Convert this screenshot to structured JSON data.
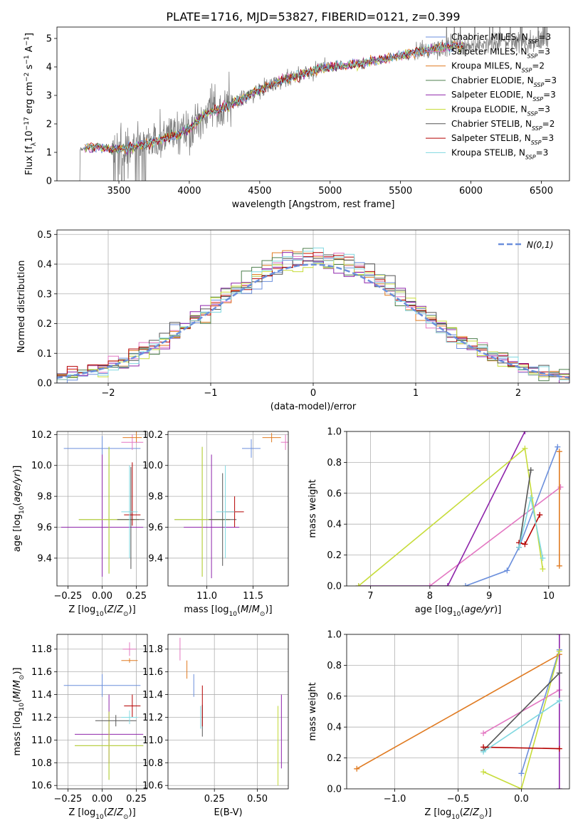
{
  "figure": {
    "title": "PLATE=1716, MJD=53827, FIBERID=0121, z=0.399",
    "panel1_ylabel": "Flux [f$_\\lambda$10$^{-17}$ erg cm$^{-2}$ s$^{-1}$ A$^{-1}$]"
  },
  "colors": {
    "chabrier_miles": "#6b8fdc",
    "salpeter_miles": "#e377c2",
    "kroupa_miles": "#e07b22",
    "chabrier_elodie": "#4d7f4d",
    "salpeter_elodie": "#8e24aa",
    "kroupa_elodie": "#c7dc3a",
    "chabrier_stelib": "#555555",
    "salpeter_stelib": "#b50000",
    "kroupa_stelib": "#80d8e0",
    "data": "#808080"
  },
  "legend_spectrum": [
    {
      "label": "Chabrier MILES, N",
      "sub": "SSP",
      "suffix": "=3",
      "color": "#6b8fdc"
    },
    {
      "label": "Salpeter MILES, N",
      "sub": "SSP",
      "suffix": "=3",
      "color": "#e377c2"
    },
    {
      "label": "Kroupa MILES, N",
      "sub": "SSP",
      "suffix": "=2",
      "color": "#e07b22"
    },
    {
      "label": "Chabrier ELODIE, N",
      "sub": "SSP",
      "suffix": "=3",
      "color": "#4d7f4d"
    },
    {
      "label": "Salpeter ELODIE, N",
      "sub": "SSP",
      "suffix": "=3",
      "color": "#8e24aa"
    },
    {
      "label": "Kroupa ELODIE, N",
      "sub": "SSP",
      "suffix": "=3",
      "color": "#c7dc3a"
    },
    {
      "label": "Chabrier STELIB, N",
      "sub": "SSP",
      "suffix": "=2",
      "color": "#555555"
    },
    {
      "label": "Salpeter STELIB, N",
      "sub": "SSP",
      "suffix": "=3",
      "color": "#b50000"
    },
    {
      "label": "Kroupa STELIB, N",
      "sub": "SSP",
      "suffix": "=3",
      "color": "#80d8e0"
    }
  ],
  "chart_data": [
    {
      "type": "line",
      "title": "PLATE=1716, MJD=53827, FIBERID=0121, z=0.399",
      "xlabel": "wavelength [Angstrom, rest frame]",
      "ylabel": "Flux [fλ10−17 erg cm−2 s−1 A−1]",
      "xlim": [
        3060,
        6700
      ],
      "ylim": [
        0,
        5.4
      ],
      "xticks": [
        3500,
        4000,
        4500,
        5000,
        5500,
        6000,
        6500
      ],
      "yticks": [
        0,
        1,
        2,
        3,
        4,
        5
      ],
      "grid": false,
      "legend": "top-right",
      "series_note": "observed spectrum (gray) with 9 overlapping model fits",
      "continuum": {
        "x": [
          3200,
          3300,
          3500,
          3700,
          3900,
          4000,
          4100,
          4300,
          4500,
          4700,
          4900,
          5000,
          5200,
          5400,
          5600,
          5800,
          6000,
          6200,
          6400,
          6550
        ],
        "y": [
          1.05,
          1.2,
          1.1,
          1.3,
          1.6,
          1.8,
          2.3,
          2.7,
          3.2,
          3.6,
          3.9,
          4.0,
          4.1,
          4.3,
          4.5,
          4.7,
          4.8,
          4.85,
          4.9,
          4.95
        ]
      }
    },
    {
      "type": "line",
      "xlabel": "(data-model)/error",
      "ylabel": "Normed distribution",
      "xlim": [
        -2.5,
        2.5
      ],
      "ylim": [
        0,
        0.515
      ],
      "xticks": [
        -2,
        -1,
        0,
        1,
        2
      ],
      "yticks": [
        0.0,
        0.1,
        0.2,
        0.3,
        0.4,
        0.5
      ],
      "grid": true,
      "legend": "top-right",
      "legend_label": "N(0,1)",
      "gaussian": {
        "mean": 0,
        "sigma": 1
      },
      "histogram_bin_width": 0.1,
      "histogram_note": "9 stepped histograms, one per model"
    },
    {
      "type": "scatter",
      "xlabel": "Z [log10(Z/Z⊙)]",
      "ylabel": "age  [log10(age/yr)]",
      "xlim": [
        -0.33,
        0.33
      ],
      "ylim": [
        9.22,
        10.22
      ],
      "xticks": [
        -0.25,
        0.0,
        0.25
      ],
      "yticks": [
        9.4,
        9.6,
        9.8,
        10.0,
        10.2
      ],
      "grid": true,
      "points": [
        {
          "model": "chabrier_miles",
          "x": 0.0,
          "xerr": [
            0.28,
            0.28
          ],
          "y": 10.11,
          "yerr": [
            0.12,
            0.08
          ]
        },
        {
          "model": "salpeter_miles",
          "x": 0.22,
          "xerr": [
            0.08,
            0.08
          ],
          "y": 10.15,
          "yerr": [
            0.05,
            0.05
          ]
        },
        {
          "model": "kroupa_miles",
          "x": 0.25,
          "xerr": [
            0.1,
            0.04
          ],
          "y": 10.18,
          "yerr": [
            0.03,
            0.04
          ]
        },
        {
          "model": "chabrier_elodie",
          "x": 0.05,
          "xerr": [
            0.22,
            0.22
          ],
          "y": 9.65,
          "yerr": [
            0.35,
            0.47
          ]
        },
        {
          "model": "salpeter_elodie",
          "x": 0.0,
          "xerr": [
            0.3,
            0.3
          ],
          "y": 9.6,
          "yerr": [
            0.32,
            0.47
          ]
        },
        {
          "model": "kroupa_elodie",
          "x": 0.05,
          "xerr": [
            0.22,
            0.22
          ],
          "y": 9.65,
          "yerr": [
            0.35,
            0.47
          ]
        },
        {
          "model": "chabrier_stelib",
          "x": 0.21,
          "xerr": [
            0.1,
            0.1
          ],
          "y": 9.65,
          "yerr": [
            0.32,
            0.34
          ]
        },
        {
          "model": "salpeter_stelib",
          "x": 0.22,
          "xerr": [
            0.06,
            0.06
          ],
          "y": 9.68,
          "yerr": [
            0.07,
            0.34
          ]
        },
        {
          "model": "kroupa_stelib",
          "x": 0.2,
          "xerr": [
            0.06,
            0.06
          ],
          "y": 9.7,
          "yerr": [
            0.3,
            0.3
          ]
        }
      ]
    },
    {
      "type": "scatter",
      "xlabel": "mass [log10(M/M⊙)]",
      "ylabel": "",
      "xlim": [
        10.58,
        11.88
      ],
      "ylim": [
        9.22,
        10.22
      ],
      "xticks": [
        11.0,
        11.5
      ],
      "yticks": [
        9.4,
        9.6,
        9.8,
        10.0,
        10.2
      ],
      "grid": true,
      "points": [
        {
          "model": "chabrier_miles",
          "x": 11.48,
          "xerr": [
            0.1,
            0.1
          ],
          "y": 10.11,
          "yerr": [
            0.06,
            0.06
          ]
        },
        {
          "model": "salpeter_miles",
          "x": 11.85,
          "xerr": [
            0.05,
            0.05
          ],
          "y": 10.15,
          "yerr": [
            0.05,
            0.05
          ]
        },
        {
          "model": "kroupa_miles",
          "x": 11.7,
          "xerr": [
            0.1,
            0.1
          ],
          "y": 10.18,
          "yerr": [
            0.03,
            0.03
          ]
        },
        {
          "model": "chabrier_elodie",
          "x": 10.95,
          "xerr": [
            0.3,
            0.3
          ],
          "y": 9.65,
          "yerr": [
            0.37,
            0.47
          ]
        },
        {
          "model": "salpeter_elodie",
          "x": 11.05,
          "xerr": [
            0.3,
            0.3
          ],
          "y": 9.6,
          "yerr": [
            0.33,
            0.47
          ]
        },
        {
          "model": "kroupa_elodie",
          "x": 10.95,
          "xerr": [
            0.3,
            0.3
          ],
          "y": 9.65,
          "yerr": [
            0.37,
            0.47
          ]
        },
        {
          "model": "chabrier_stelib",
          "x": 11.17,
          "xerr": [
            0.15,
            0.15
          ],
          "y": 9.65,
          "yerr": [
            0.3,
            0.3
          ]
        },
        {
          "model": "salpeter_stelib",
          "x": 11.3,
          "xerr": [
            0.1,
            0.1
          ],
          "y": 9.7,
          "yerr": [
            0.1,
            0.1
          ]
        },
        {
          "model": "kroupa_stelib",
          "x": 11.2,
          "xerr": [
            0.1,
            0.1
          ],
          "y": 9.7,
          "yerr": [
            0.3,
            0.3
          ]
        }
      ]
    },
    {
      "type": "line",
      "xlabel": "age  [log10(age/yr)]",
      "ylabel": "mass weight",
      "xlim": [
        6.6,
        10.35
      ],
      "ylim": [
        0,
        1
      ],
      "xticks": [
        7,
        8,
        9,
        10
      ],
      "yticks": [
        0.0,
        0.2,
        0.4,
        0.6,
        0.8,
        1.0
      ],
      "grid": true,
      "series": [
        {
          "model": "chabrier_miles",
          "x": [
            8.6,
            9.3,
            9.5,
            10.15
          ],
          "y": [
            0.0,
            0.1,
            0.25,
            0.9
          ]
        },
        {
          "model": "salpeter_miles",
          "x": [
            8.0,
            10.2
          ],
          "y": [
            0.0,
            0.64
          ]
        },
        {
          "model": "kroupa_miles",
          "x": [
            10.18,
            10.18
          ],
          "y": [
            0.13,
            0.87
          ]
        },
        {
          "model": "salpeter_elodie",
          "x": [
            6.8,
            8.3,
            9.6
          ],
          "y": [
            0.0,
            0.0,
            1.0
          ]
        },
        {
          "model": "kroupa_elodie",
          "x": [
            6.8,
            9.6,
            9.9
          ],
          "y": [
            0.0,
            0.89,
            0.11
          ]
        },
        {
          "model": "chabrier_stelib",
          "x": [
            9.5,
            9.7
          ],
          "y": [
            0.25,
            0.75
          ]
        },
        {
          "model": "salpeter_stelib",
          "x": [
            9.5,
            9.6,
            9.85
          ],
          "y": [
            0.28,
            0.27,
            0.46
          ]
        },
        {
          "model": "kroupa_stelib",
          "x": [
            9.5,
            9.7,
            9.9
          ],
          "y": [
            0.25,
            0.57,
            0.18
          ]
        }
      ]
    },
    {
      "type": "scatter",
      "xlabel": "Z [log10(Z/Z⊙)]",
      "ylabel": "mass [log10(M/M⊙)]",
      "xlim": [
        -0.33,
        0.33
      ],
      "ylim": [
        10.57,
        11.93
      ],
      "xticks": [
        -0.25,
        0.0,
        0.25
      ],
      "yticks": [
        10.6,
        10.8,
        11.0,
        11.2,
        11.4,
        11.6,
        11.8
      ],
      "grid": true,
      "points": [
        {
          "model": "chabrier_miles",
          "x": 0.0,
          "xerr": [
            0.28,
            0.28
          ],
          "y": 11.48,
          "yerr": [
            0.1,
            0.1
          ]
        },
        {
          "model": "salpeter_miles",
          "x": 0.2,
          "xerr": [
            0.05,
            0.05
          ],
          "y": 11.8,
          "yerr": [
            0.06,
            0.06
          ]
        },
        {
          "model": "kroupa_miles",
          "x": 0.2,
          "xerr": [
            0.06,
            0.06
          ],
          "y": 11.7,
          "yerr": [
            0.02,
            0.02
          ]
        },
        {
          "model": "chabrier_elodie",
          "x": 0.05,
          "xerr": [
            0.25,
            0.25
          ],
          "y": 10.95,
          "yerr": [
            0.3,
            0.3
          ]
        },
        {
          "model": "salpeter_elodie",
          "x": 0.05,
          "xerr": [
            0.25,
            0.25
          ],
          "y": 11.05,
          "yerr": [
            0.25,
            0.35
          ]
        },
        {
          "model": "kroupa_elodie",
          "x": 0.05,
          "xerr": [
            0.25,
            0.25
          ],
          "y": 10.95,
          "yerr": [
            0.3,
            0.3
          ]
        },
        {
          "model": "chabrier_stelib",
          "x": 0.1,
          "xerr": [
            0.15,
            0.15
          ],
          "y": 11.17,
          "yerr": [
            0.05,
            0.05
          ]
        },
        {
          "model": "salpeter_stelib",
          "x": 0.22,
          "xerr": [
            0.06,
            0.06
          ],
          "y": 11.3,
          "yerr": [
            0.1,
            0.1
          ]
        },
        {
          "model": "kroupa_stelib",
          "x": 0.2,
          "xerr": [
            0.06,
            0.06
          ],
          "y": 11.2,
          "yerr": [
            0.06,
            0.06
          ]
        }
      ]
    },
    {
      "type": "scatter",
      "xlabel": "E(B-V)",
      "ylabel": "",
      "xlim": [
        -0.02,
        0.68
      ],
      "ylim": [
        10.57,
        11.93
      ],
      "xticks": [
        0.25,
        0.5
      ],
      "yticks": [
        10.6,
        10.8,
        11.0,
        11.2,
        11.4,
        11.6,
        11.8
      ],
      "grid": true,
      "points": [
        {
          "model": "chabrier_miles",
          "x": 0.13,
          "y": 11.48,
          "yerr": [
            0.1,
            0.1
          ]
        },
        {
          "model": "salpeter_miles",
          "x": 0.05,
          "y": 11.8,
          "yerr": [
            0.1,
            0.1
          ]
        },
        {
          "model": "kroupa_miles",
          "x": 0.09,
          "y": 11.62,
          "yerr": [
            0.08,
            0.08
          ]
        },
        {
          "model": "chabrier_elodie",
          "x": 0.62,
          "y": 10.95,
          "yerr": [
            0.35,
            0.35
          ]
        },
        {
          "model": "salpeter_elodie",
          "x": 0.64,
          "y": 11.05,
          "yerr": [
            0.3,
            0.35
          ]
        },
        {
          "model": "kroupa_elodie",
          "x": 0.62,
          "y": 10.95,
          "yerr": [
            0.35,
            0.35
          ]
        },
        {
          "model": "chabrier_stelib",
          "x": 0.18,
          "y": 11.17,
          "yerr": [
            0.14,
            0.14
          ]
        },
        {
          "model": "salpeter_stelib",
          "x": 0.18,
          "y": 11.3,
          "yerr": [
            0.18,
            0.18
          ]
        },
        {
          "model": "kroupa_stelib",
          "x": 0.17,
          "y": 11.2,
          "yerr": [
            0.1,
            0.1
          ]
        }
      ]
    },
    {
      "type": "line",
      "xlabel": "Z [log10(Z/Z⊙)]",
      "ylabel": "mass weight",
      "xlim": [
        -1.38,
        0.38
      ],
      "ylim": [
        0,
        1
      ],
      "xticks": [
        -1.0,
        -0.5,
        0.0
      ],
      "yticks": [
        0.0,
        0.2,
        0.4,
        0.6,
        0.8,
        1.0
      ],
      "grid": true,
      "series": [
        {
          "model": "chabrier_miles",
          "x": [
            0.0,
            0.3
          ],
          "y": [
            0.1,
            0.9
          ]
        },
        {
          "model": "salpeter_miles",
          "x": [
            -0.3,
            0.3
          ],
          "y": [
            0.36,
            0.64
          ]
        },
        {
          "model": "kroupa_miles",
          "x": [
            -1.3,
            0.3
          ],
          "y": [
            0.13,
            0.87
          ]
        },
        {
          "model": "salpeter_elodie",
          "x": [
            0.3,
            0.3
          ],
          "y": [
            0.0,
            1.0
          ]
        },
        {
          "model": "kroupa_elodie",
          "x": [
            -0.3,
            0.0,
            0.3
          ],
          "y": [
            0.11,
            0.0,
            0.89
          ]
        },
        {
          "model": "chabrier_stelib",
          "x": [
            -0.3,
            0.3
          ],
          "y": [
            0.25,
            0.75
          ]
        },
        {
          "model": "salpeter_stelib",
          "x": [
            -0.3,
            0.3
          ],
          "y": [
            0.27,
            0.26
          ]
        },
        {
          "model": "kroupa_stelib",
          "x": [
            -0.3,
            0.3
          ],
          "y": [
            0.24,
            0.57
          ]
        }
      ]
    }
  ]
}
